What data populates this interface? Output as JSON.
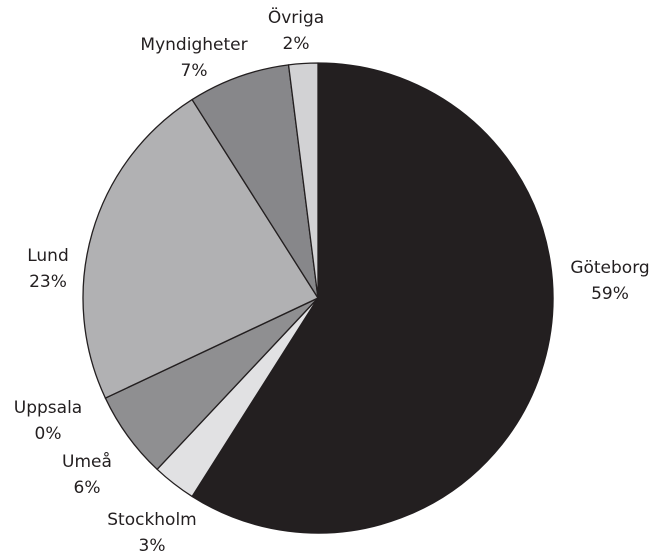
{
  "chart_data": {
    "type": "pie",
    "categories": [
      "Göteborg",
      "Stockholm",
      "Umeå",
      "Uppsala",
      "Lund",
      "Myndigheter",
      "Övriga"
    ],
    "values": [
      59,
      3,
      6,
      0,
      23,
      7,
      2
    ],
    "value_labels": [
      "59%",
      "3%",
      "6%",
      "0%",
      "23%",
      "7%",
      "2%"
    ],
    "colors": [
      "#231f20",
      "#e1e1e3",
      "#8f8f91",
      "#a0a0a2",
      "#b1b1b3",
      "#87878a",
      "#d2d2d4"
    ]
  }
}
